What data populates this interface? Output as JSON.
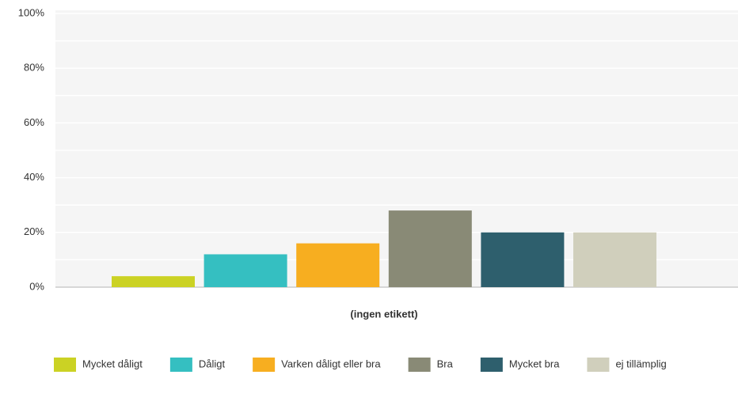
{
  "chart_data": {
    "type": "bar",
    "categories": [
      "(ingen etikett)"
    ],
    "series": [
      {
        "name": "Mycket dåligt",
        "color": "#cbd224",
        "values": [
          4
        ]
      },
      {
        "name": "Dåligt",
        "color": "#35bfc1",
        "values": [
          12
        ]
      },
      {
        "name": "Varken dåligt eller bra",
        "color": "#f7ae20",
        "values": [
          16
        ]
      },
      {
        "name": "Bra",
        "color": "#898a76",
        "values": [
          28
        ]
      },
      {
        "name": "Mycket bra",
        "color": "#2e5f6d",
        "values": [
          20
        ]
      },
      {
        "name": "ej tillämplig",
        "color": "#d0cfbc",
        "values": [
          20
        ]
      }
    ],
    "ylim": [
      0,
      100
    ],
    "yticks": [
      {
        "value": 0,
        "label": "0%"
      },
      {
        "value": 20,
        "label": "20%"
      },
      {
        "value": 40,
        "label": "40%"
      },
      {
        "value": 60,
        "label": "60%"
      },
      {
        "value": 80,
        "label": "80%"
      },
      {
        "value": 100,
        "label": "100%"
      }
    ],
    "grid": true,
    "minor_grid": true,
    "legend": "bottom-left"
  }
}
